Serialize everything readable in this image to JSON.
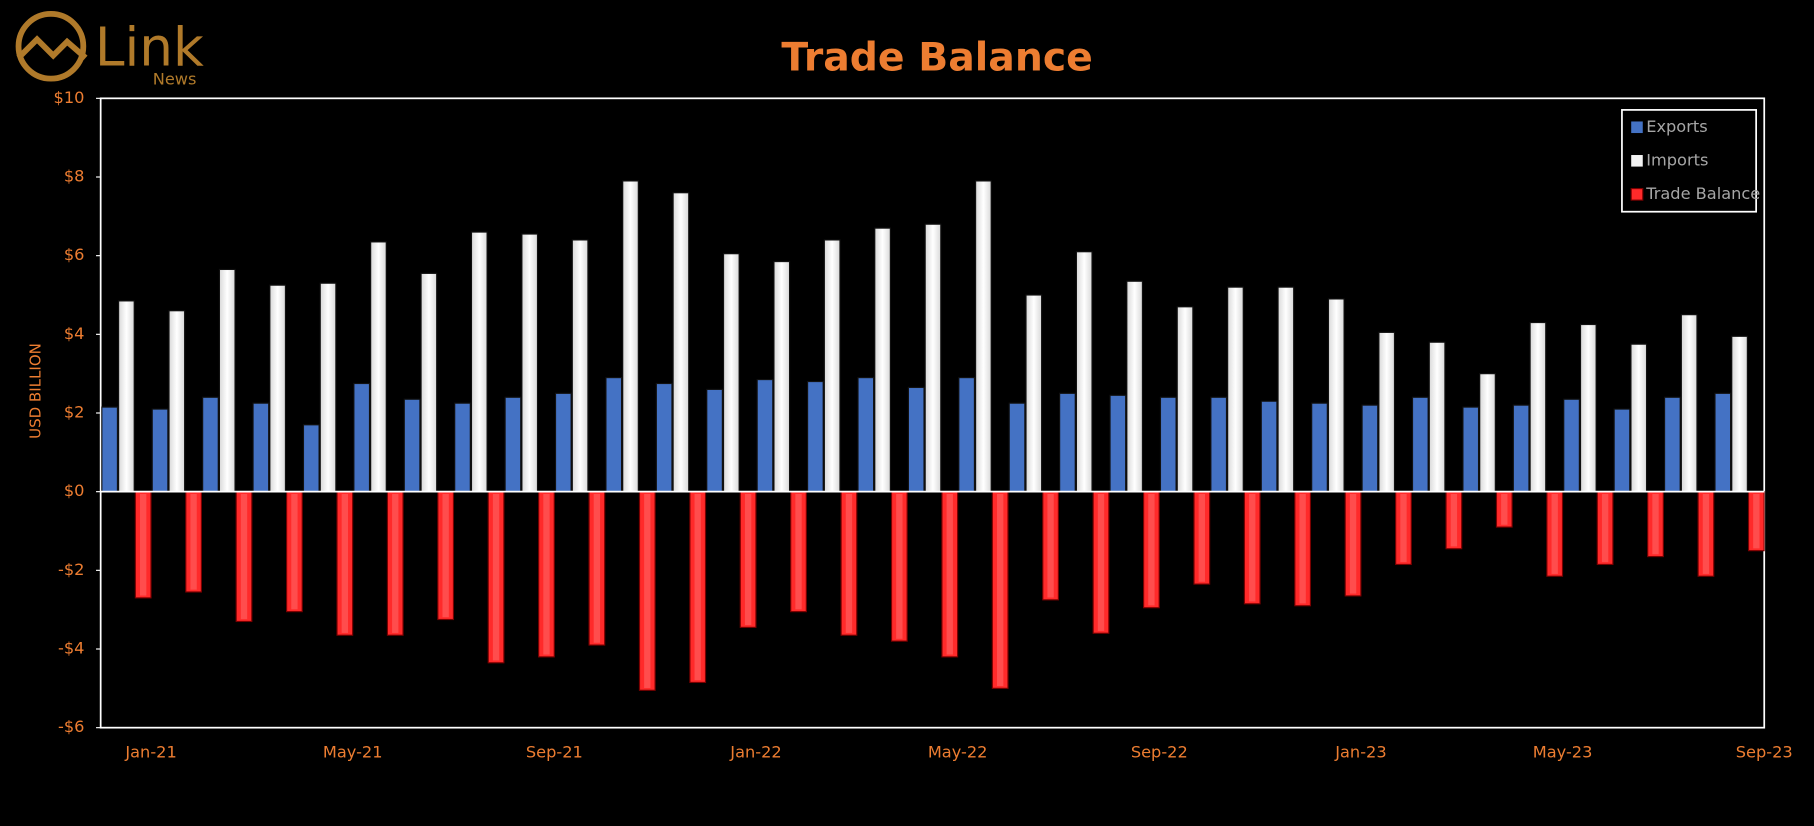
{
  "logo": {
    "text": "Link",
    "subtext": "News"
  },
  "chart_data": {
    "type": "bar",
    "title": "Trade Balance",
    "y_label": "USD BILLION",
    "categories": [
      "Jan-21",
      null,
      null,
      null,
      "May-21",
      null,
      null,
      null,
      "Sep-21",
      null,
      null,
      null,
      "Jan-22",
      null,
      null,
      null,
      "May-22",
      null,
      null,
      null,
      "Sep-22",
      null,
      null,
      null,
      "Jan-23",
      null,
      null,
      null,
      "May-23",
      null,
      null,
      null,
      "Sep-23"
    ],
    "series": [
      {
        "name": "Exports",
        "color": "#4472c4",
        "values": [
          2.15,
          2.1,
          2.4,
          2.25,
          1.7,
          2.75,
          2.35,
          2.25,
          2.4,
          2.5,
          2.9,
          2.75,
          2.6,
          2.85,
          2.8,
          2.9,
          2.65,
          2.9,
          2.25,
          2.5,
          2.45,
          2.4,
          2.4,
          2.3,
          2.25,
          2.2,
          2.4,
          2.15,
          2.2,
          2.35,
          2.1,
          2.4,
          2.5
        ]
      },
      {
        "name": "Imports",
        "color": "#f2f2f2",
        "values": [
          4.85,
          4.6,
          5.65,
          5.25,
          5.3,
          6.35,
          5.55,
          6.6,
          6.55,
          6.4,
          7.9,
          7.6,
          6.05,
          5.85,
          6.4,
          6.7,
          6.8,
          7.9,
          5.0,
          6.1,
          5.35,
          4.7,
          5.2,
          5.2,
          4.9,
          4.05,
          3.8,
          3.0,
          4.3,
          4.25,
          3.75,
          4.5,
          3.95
        ]
      },
      {
        "name": "Trade Balance",
        "color": "#ff2a2a",
        "values": [
          -2.7,
          -2.55,
          -3.3,
          -3.05,
          -3.65,
          -3.65,
          -3.25,
          -4.35,
          -4.2,
          -3.9,
          -5.05,
          -4.85,
          -3.45,
          -3.05,
          -3.65,
          -3.8,
          -4.2,
          -5.0,
          -2.75,
          -3.6,
          -2.95,
          -2.35,
          -2.85,
          -2.9,
          -2.65,
          -1.85,
          -1.45,
          -0.9,
          -2.15,
          -1.85,
          -1.65,
          -2.15,
          -1.5
        ]
      }
    ],
    "ylim": [
      -6,
      10
    ],
    "yticks": [
      {
        "value": -6,
        "label": "-$6"
      },
      {
        "value": -4,
        "label": "-$4"
      },
      {
        "value": -2,
        "label": "-$2"
      },
      {
        "value": 0,
        "label": "$0"
      },
      {
        "value": 2,
        "label": "$2"
      },
      {
        "value": 4,
        "label": "$4"
      },
      {
        "value": 6,
        "label": "$6"
      },
      {
        "value": 8,
        "label": "$8"
      },
      {
        "value": 10,
        "label": "$10"
      }
    ],
    "legend": "top-right"
  }
}
